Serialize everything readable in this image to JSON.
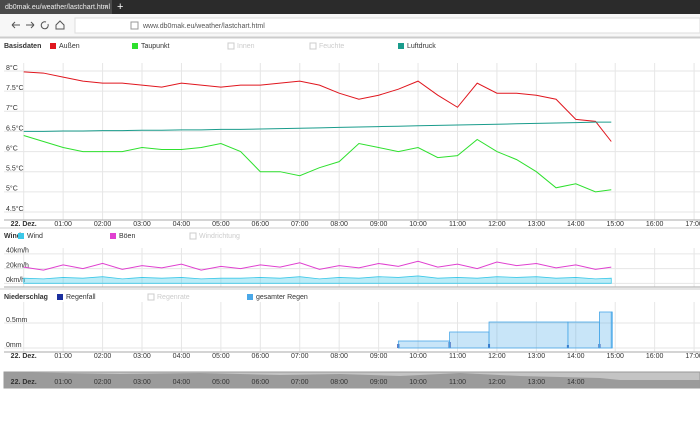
{
  "browser": {
    "tab_title": "db0mak.eu/weather/lastchart.html",
    "new_tab": "+",
    "url": "www.db0mak.eu/weather/lastchart.html"
  },
  "chart_data": [
    {
      "type": "line",
      "title": "Basisdaten",
      "x": [
        0,
        0.5,
        1,
        1.5,
        2,
        2.5,
        3,
        3.5,
        4,
        4.5,
        5,
        5.5,
        6,
        6.5,
        7,
        7.5,
        8,
        8.5,
        9,
        9.5,
        10,
        10.5,
        11,
        11.5,
        12,
        12.5,
        13,
        13.5,
        14,
        14.5,
        14.9
      ],
      "xlim": [
        -0.5,
        17.15
      ],
      "ylim": [
        4.3,
        8.2
      ],
      "xticks": [
        {
          "value": 0,
          "label": "22. Dez."
        },
        {
          "value": 1,
          "label": "01:00"
        },
        {
          "value": 2,
          "label": "02:00"
        },
        {
          "value": 3,
          "label": "03:00"
        },
        {
          "value": 4,
          "label": "04:00"
        },
        {
          "value": 5,
          "label": "05:00"
        },
        {
          "value": 6,
          "label": "06:00"
        },
        {
          "value": 7,
          "label": "07:00"
        },
        {
          "value": 8,
          "label": "08:00"
        },
        {
          "value": 9,
          "label": "09:00"
        },
        {
          "value": 10,
          "label": "10:00"
        },
        {
          "value": 11,
          "label": "11:00"
        },
        {
          "value": 12,
          "label": "12:00"
        },
        {
          "value": 13,
          "label": "13:00"
        },
        {
          "value": 14,
          "label": "14:00"
        },
        {
          "value": 15,
          "label": "15:00"
        },
        {
          "value": 16,
          "label": "16:00"
        },
        {
          "value": 17,
          "label": "17:00"
        }
      ],
      "yticks": [
        {
          "value": 4.5,
          "label": "4.5°C"
        },
        {
          "value": 5,
          "label": "5°C"
        },
        {
          "value": 5.5,
          "label": "5.5°C"
        },
        {
          "value": 6,
          "label": "6°C"
        },
        {
          "value": 6.5,
          "label": "6.5°C"
        },
        {
          "value": 7,
          "label": "7°C"
        },
        {
          "value": 7.5,
          "label": "7.5°C"
        },
        {
          "value": 8,
          "label": "8°C"
        }
      ],
      "grid": true,
      "series": [
        {
          "name": "Außen",
          "color": "#e0161e",
          "values": [
            7.98,
            7.95,
            7.85,
            7.75,
            7.7,
            7.7,
            7.65,
            7.6,
            7.7,
            7.65,
            7.6,
            7.65,
            7.65,
            7.7,
            7.75,
            7.65,
            7.45,
            7.3,
            7.4,
            7.55,
            7.75,
            7.4,
            7.1,
            7.7,
            7.45,
            7.45,
            7.4,
            7.3,
            6.8,
            6.75,
            6.25
          ]
        },
        {
          "name": "Taupunkt",
          "color": "#2ee02e",
          "values": [
            6.4,
            6.25,
            6.1,
            6.0,
            6.0,
            6.0,
            6.1,
            6.05,
            6.05,
            6.1,
            6.2,
            6.0,
            5.5,
            5.5,
            5.4,
            5.6,
            5.75,
            6.2,
            6.1,
            6.0,
            6.1,
            5.85,
            5.9,
            6.3,
            6.0,
            5.8,
            5.5,
            5.1,
            5.2,
            5.0,
            5.05
          ]
        },
        {
          "name": "Luftdruck",
          "color": "#1a9c8c",
          "values": [
            6.5,
            6.5,
            6.51,
            6.51,
            6.52,
            6.52,
            6.53,
            6.53,
            6.54,
            6.54,
            6.55,
            6.55,
            6.56,
            6.57,
            6.58,
            6.59,
            6.6,
            6.61,
            6.62,
            6.63,
            6.64,
            6.65,
            6.66,
            6.67,
            6.68,
            6.69,
            6.7,
            6.71,
            6.72,
            6.73,
            6.73
          ]
        }
      ],
      "hidden_series": [
        {
          "name": "Innen",
          "color": "#cccccc"
        },
        {
          "name": "Feuchte",
          "color": "#cccccc"
        }
      ]
    },
    {
      "type": "line",
      "title": "Wind",
      "x": [
        0,
        0.5,
        1,
        1.5,
        2,
        2.5,
        3,
        3.5,
        4,
        4.5,
        5,
        5.5,
        6,
        6.5,
        7,
        7.5,
        8,
        8.5,
        9,
        9.5,
        10,
        10.5,
        11,
        11.5,
        12,
        12.5,
        13,
        13.5,
        14,
        14.5,
        14.9
      ],
      "xlim": [
        -0.5,
        17.15
      ],
      "ylim": [
        -5,
        48
      ],
      "yticks": [
        {
          "value": 0,
          "label": "0km/h"
        },
        {
          "value": 20,
          "label": "20km/h"
        },
        {
          "value": 40,
          "label": "40km/h"
        }
      ],
      "grid": true,
      "series": [
        {
          "name": "Wind",
          "color": "#3cc8e8",
          "style": "area",
          "values": [
            7,
            6,
            8,
            7,
            9,
            6,
            8,
            7,
            8,
            6,
            7,
            7,
            8,
            7,
            9,
            6,
            8,
            7,
            9,
            8,
            10,
            7,
            8,
            7,
            9,
            8,
            9,
            7,
            8,
            6,
            7
          ]
        },
        {
          "name": "Böen",
          "color": "#e040d0",
          "values": [
            22,
            18,
            25,
            20,
            27,
            19,
            24,
            21,
            26,
            18,
            23,
            20,
            25,
            22,
            28,
            19,
            24,
            21,
            27,
            23,
            30,
            22,
            26,
            20,
            29,
            24,
            27,
            21,
            25,
            19,
            22
          ]
        }
      ],
      "hidden_series": [
        {
          "name": "Windrichtung",
          "color": "#cccccc"
        }
      ]
    },
    {
      "type": "area",
      "title": "Niederschlag",
      "step": true,
      "x": [
        0,
        9.5,
        10.8,
        11.8,
        13.8,
        14.6,
        14.9
      ],
      "xlim": [
        -0.5,
        17.15
      ],
      "ylim": [
        -0.08,
        0.92
      ],
      "xticks": [
        {
          "value": 0,
          "label": "22. Dez."
        },
        {
          "value": 1,
          "label": "01:00"
        },
        {
          "value": 2,
          "label": "02:00"
        },
        {
          "value": 3,
          "label": "03:00"
        },
        {
          "value": 4,
          "label": "04:00"
        },
        {
          "value": 5,
          "label": "05:00"
        },
        {
          "value": 6,
          "label": "06:00"
        },
        {
          "value": 7,
          "label": "07:00"
        },
        {
          "value": 8,
          "label": "08:00"
        },
        {
          "value": 9,
          "label": "09:00"
        },
        {
          "value": 10,
          "label": "10:00"
        },
        {
          "value": 11,
          "label": "11:00"
        },
        {
          "value": 12,
          "label": "12:00"
        },
        {
          "value": 13,
          "label": "13:00"
        },
        {
          "value": 14,
          "label": "14:00"
        },
        {
          "value": 15,
          "label": "15:00"
        },
        {
          "value": 16,
          "label": "16:00"
        },
        {
          "value": 17,
          "label": "17:00"
        }
      ],
      "yticks": [
        {
          "value": 0,
          "label": "0mm"
        },
        {
          "value": 0.5,
          "label": "0.5mm"
        }
      ],
      "grid": true,
      "series": [
        {
          "name": "Regenfall",
          "color": "#1a2f9e",
          "style": "bar",
          "values": [
            0,
            0.08,
            0.12,
            0.08,
            0.06,
            0.08,
            0
          ]
        },
        {
          "name": "gesamter Regen",
          "color": "#4aa8e8",
          "values": [
            0,
            0.14,
            0.32,
            0.52,
            0.52,
            0.72,
            0.72
          ]
        }
      ],
      "hidden_series": [
        {
          "name": "Regenrate",
          "color": "#cccccc"
        }
      ]
    }
  ]
}
